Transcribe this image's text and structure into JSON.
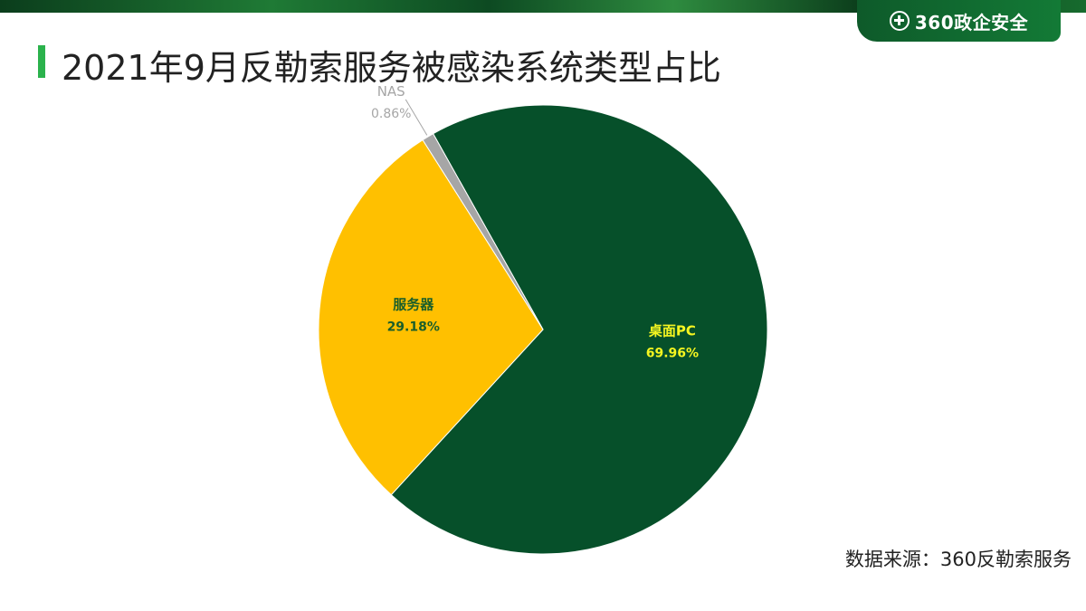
{
  "header": {
    "brand_label": "360政企安全",
    "title": "2021年9月反勒索服务被感染系统类型占比"
  },
  "colors": {
    "accent_bar": "#2bb24c",
    "brand_green": "#0e5a2a"
  },
  "chart_data": {
    "type": "pie",
    "slices": [
      {
        "name": "桌面PC",
        "value": 69.96,
        "label": "69.96%",
        "color": "#06502a",
        "label_color": "#f5f520"
      },
      {
        "name": "服务器",
        "value": 29.18,
        "label": "29.18%",
        "color": "#ffc000",
        "label_color": "#1a5e2a"
      },
      {
        "name": "NAS",
        "value": 0.86,
        "label": "0.86%",
        "color": "#a6a6a6",
        "label_color": "#a6a6a6"
      }
    ],
    "title": ""
  },
  "footer": {
    "source": "数据来源：360反勒索服务"
  }
}
